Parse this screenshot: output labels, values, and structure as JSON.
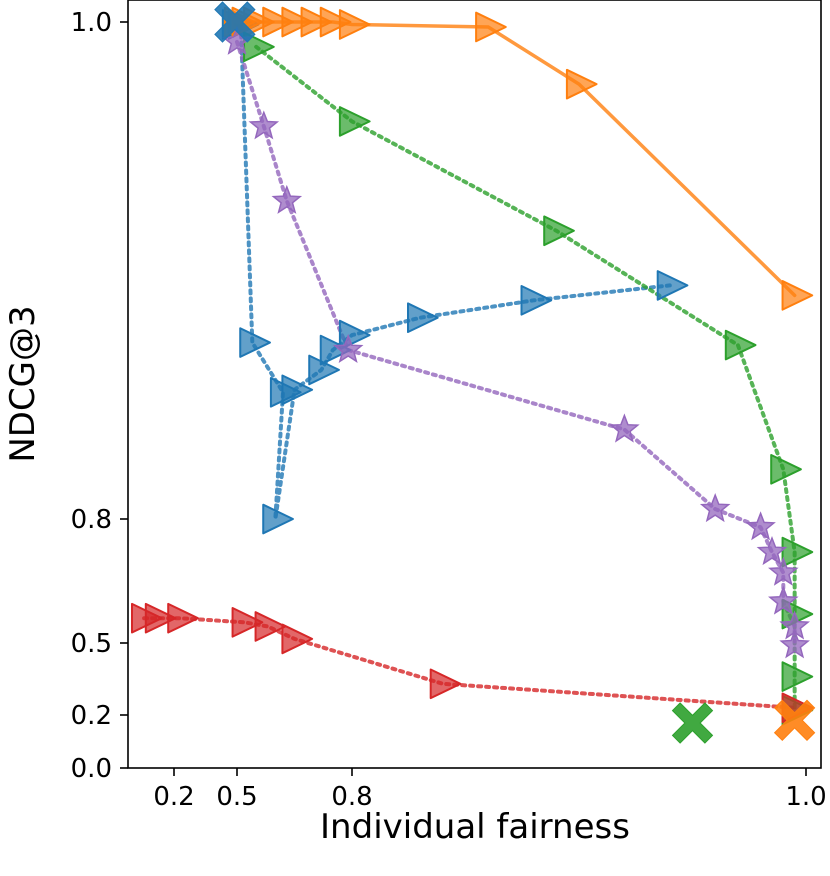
{
  "chart_data": {
    "type": "scatter",
    "xlabel": "Individual fairness",
    "ylabel": "NDCG@3",
    "axis_note": "Both axes use a nonlinear (stretched) scale; numeric values are approximate.",
    "x_ticks": [
      "0.2",
      "0.5",
      "0.8",
      "1.0"
    ],
    "y_ticks": [
      "0.0",
      "0.2",
      "0.5",
      "0.8",
      "1.0"
    ],
    "series": [
      {
        "name": "blue",
        "color": "#1f77b4",
        "line": "dotted",
        "x": [
          0.49,
          0.51,
          0.54,
          0.62,
          0.6,
          0.65,
          0.72,
          0.75,
          0.8,
          0.83,
          0.88,
          0.94
        ],
        "y": [
          0.999,
          0.999,
          0.871,
          0.851,
          0.8,
          0.852,
          0.86,
          0.868,
          0.874,
          0.881,
          0.888,
          0.894
        ]
      },
      {
        "name": "orange",
        "color": "#ff7f0e",
        "line": "solid",
        "x": [
          0.5,
          0.52,
          0.55,
          0.6,
          0.65,
          0.7,
          0.75,
          0.8,
          0.86,
          0.9,
          0.995
        ],
        "y": [
          1.0,
          1.0,
          1.0,
          1.0,
          1.0,
          1.0,
          1.0,
          0.999,
          0.998,
          0.975,
          0.89
        ]
      },
      {
        "name": "green",
        "color": "#2ca02c",
        "line": "dotted",
        "x": [
          0.55,
          0.8,
          0.89,
          0.97,
          0.99,
          0.995,
          0.995,
          0.995,
          0.995
        ],
        "y": [
          0.99,
          0.96,
          0.916,
          0.87,
          0.82,
          0.72,
          0.57,
          0.36,
          0.22
        ]
      },
      {
        "name": "red",
        "color": "#d62728",
        "line": "dotted",
        "x": [
          0.07,
          0.13,
          0.23,
          0.52,
          0.58,
          0.65,
          0.84,
          0.995
        ],
        "y": [
          0.56,
          0.56,
          0.56,
          0.55,
          0.54,
          0.51,
          0.33,
          0.23
        ]
      },
      {
        "name": "purple",
        "color": "#9467bd",
        "line": "dotted",
        "x": [
          0.5,
          0.57,
          0.63,
          0.79,
          0.92,
          0.96,
          0.98,
          0.985,
          0.99,
          0.99,
          0.995,
          0.995
        ],
        "y": [
          0.992,
          0.958,
          0.928,
          0.868,
          0.836,
          0.804,
          0.78,
          0.72,
          0.67,
          0.6,
          0.54,
          0.49
        ]
      }
    ],
    "extra_markers": [
      {
        "series": "blue",
        "marker": "X",
        "x": 0.49,
        "y": 1.0,
        "color": "#1f77b4"
      },
      {
        "series": "green",
        "marker": "X",
        "x": 0.95,
        "y": 0.17,
        "color": "#2ca02c"
      },
      {
        "series": "orange",
        "marker": "X",
        "x": 0.995,
        "y": 0.18,
        "color": "#ff7f0e"
      }
    ]
  }
}
